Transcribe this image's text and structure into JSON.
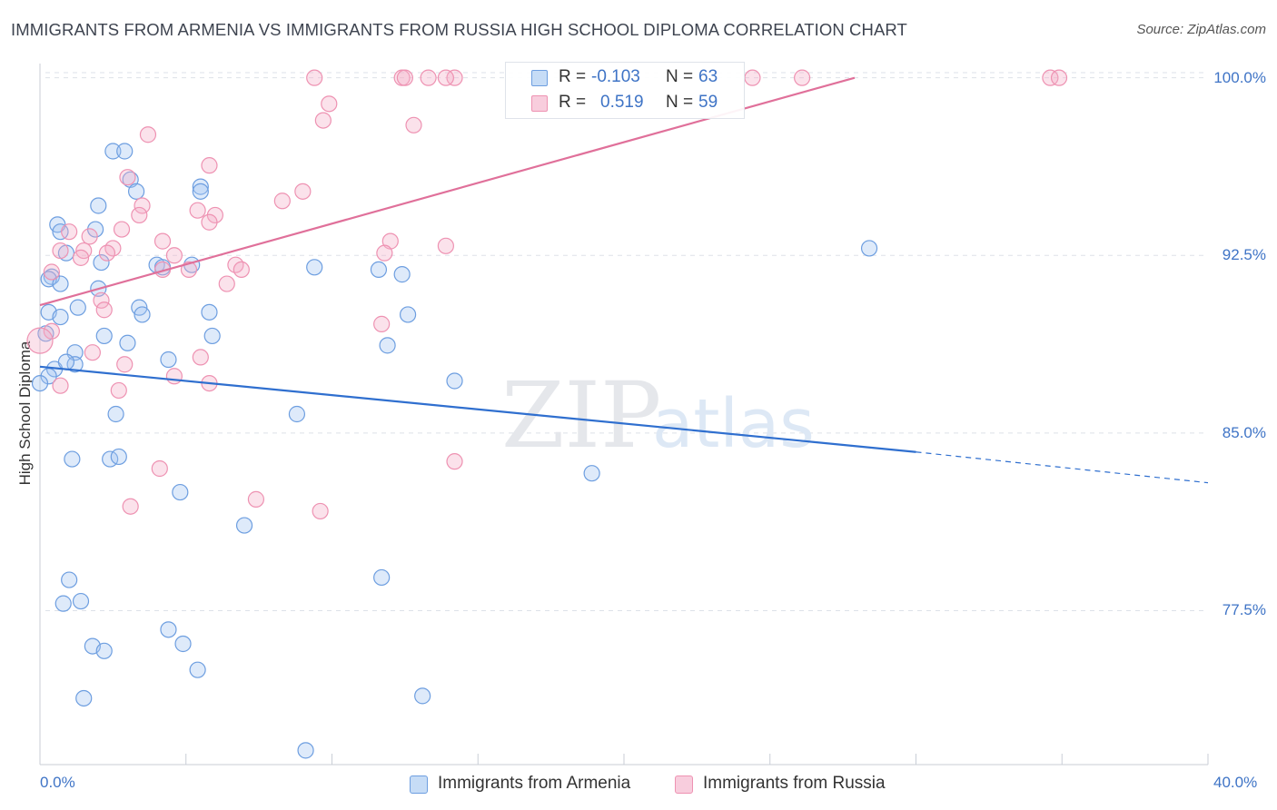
{
  "title": "IMMIGRANTS FROM ARMENIA VS IMMIGRANTS FROM RUSSIA HIGH SCHOOL DIPLOMA CORRELATION CHART",
  "source": "Source: ZipAtlas.com",
  "watermark": {
    "zip": "ZIP",
    "atlas": "atlas"
  },
  "colors": {
    "armenia_fill": "rgba(160,196,240,0.35)",
    "armenia_stroke": "#6d9ee0",
    "armenia_line": "#2f6fcf",
    "russia_fill": "rgba(244,172,198,0.35)",
    "russia_stroke": "#ee92b2",
    "russia_line": "#e0709a",
    "tick_label": "#3f74c6",
    "grid": "#dde1e8"
  },
  "legend_top": {
    "armenia": {
      "r_label": "R =",
      "r_value": "-0.103",
      "n_label": "N =",
      "n_value": "63"
    },
    "russia": {
      "r_label": "R =",
      "r_value": "0.519",
      "n_label": "N =",
      "n_value": "59"
    }
  },
  "chart_data": {
    "type": "scatter",
    "title": "IMMIGRANTS FROM ARMENIA VS IMMIGRANTS FROM RUSSIA HIGH SCHOOL DIPLOMA CORRELATION CHART",
    "xlabel": "",
    "ylabel": "High School Diploma",
    "xlim": [
      0,
      40
    ],
    "ylim": [
      71.0,
      100.6
    ],
    "x_tick_labels": {
      "min": "0.0%",
      "max": "40.0%"
    },
    "y_ticks": [
      {
        "value": 100.0,
        "label": "100.0%"
      },
      {
        "value": 92.5,
        "label": "92.5%"
      },
      {
        "value": 85.0,
        "label": "85.0%"
      },
      {
        "value": 77.5,
        "label": "77.5%"
      }
    ],
    "grid": true,
    "legend_position": "bottom-center",
    "series": [
      {
        "name": "Immigrants from Armenia",
        "r": -0.103,
        "n": 63,
        "trend": {
          "x0": 0.0,
          "y0": 87.8,
          "x1": 30.0,
          "y1": 84.2,
          "dashed_to_x": 40.0,
          "dashed_to_y": 82.9
        },
        "points": [
          [
            2.5,
            96.9
          ],
          [
            2.9,
            96.9
          ],
          [
            3.1,
            95.7
          ],
          [
            3.3,
            95.2
          ],
          [
            2.0,
            94.6
          ],
          [
            5.5,
            95.4
          ],
          [
            5.5,
            95.2
          ],
          [
            0.6,
            93.8
          ],
          [
            0.7,
            93.5
          ],
          [
            1.9,
            93.6
          ],
          [
            0.9,
            92.6
          ],
          [
            2.1,
            92.2
          ],
          [
            4.0,
            92.1
          ],
          [
            5.2,
            92.1
          ],
          [
            9.4,
            92.0
          ],
          [
            11.6,
            91.9
          ],
          [
            12.4,
            91.7
          ],
          [
            0.4,
            91.6
          ],
          [
            0.3,
            91.5
          ],
          [
            0.7,
            91.3
          ],
          [
            2.0,
            91.1
          ],
          [
            1.3,
            90.3
          ],
          [
            5.8,
            90.1
          ],
          [
            3.4,
            90.3
          ],
          [
            3.5,
            90.0
          ],
          [
            12.6,
            90.0
          ],
          [
            0.3,
            90.1
          ],
          [
            0.7,
            89.9
          ],
          [
            0.2,
            89.2
          ],
          [
            2.2,
            89.1
          ],
          [
            5.9,
            89.1
          ],
          [
            1.2,
            88.4
          ],
          [
            11.9,
            88.7
          ],
          [
            4.4,
            88.1
          ],
          [
            0.5,
            87.7
          ],
          [
            1.2,
            87.9
          ],
          [
            0.3,
            87.4
          ],
          [
            0.0,
            87.1
          ],
          [
            14.2,
            87.2
          ],
          [
            2.6,
            85.8
          ],
          [
            8.8,
            85.8
          ],
          [
            1.1,
            83.9
          ],
          [
            2.4,
            83.9
          ],
          [
            2.7,
            84.0
          ],
          [
            18.9,
            83.3
          ],
          [
            4.8,
            82.5
          ],
          [
            7.0,
            81.1
          ],
          [
            1.0,
            78.8
          ],
          [
            11.7,
            78.9
          ],
          [
            0.8,
            77.8
          ],
          [
            1.4,
            77.9
          ],
          [
            4.4,
            76.7
          ],
          [
            1.8,
            76.0
          ],
          [
            4.9,
            76.1
          ],
          [
            2.2,
            75.8
          ],
          [
            5.4,
            75.0
          ],
          [
            1.5,
            73.8
          ],
          [
            13.1,
            73.9
          ],
          [
            9.1,
            71.6
          ],
          [
            28.4,
            92.8
          ],
          [
            4.2,
            92.0
          ],
          [
            3.0,
            88.8
          ],
          [
            0.9,
            88.0
          ]
        ]
      },
      {
        "name": "Immigrants from Russia",
        "r": 0.519,
        "n": 59,
        "trend": {
          "x0": 0.0,
          "y0": 90.4,
          "x1": 27.9,
          "y1": 100.0
        },
        "points": [
          [
            9.4,
            100.0
          ],
          [
            12.4,
            100.0
          ],
          [
            12.5,
            100.0
          ],
          [
            13.3,
            100.0
          ],
          [
            14.2,
            100.0
          ],
          [
            26.1,
            100.0
          ],
          [
            34.6,
            100.0
          ],
          [
            34.9,
            100.0
          ],
          [
            9.9,
            98.9
          ],
          [
            9.7,
            98.2
          ],
          [
            12.8,
            98.0
          ],
          [
            3.7,
            97.6
          ],
          [
            5.8,
            96.3
          ],
          [
            3.0,
            95.8
          ],
          [
            9.0,
            95.2
          ],
          [
            8.3,
            94.8
          ],
          [
            3.5,
            94.6
          ],
          [
            5.4,
            94.4
          ],
          [
            6.0,
            94.2
          ],
          [
            3.4,
            94.2
          ],
          [
            5.8,
            93.9
          ],
          [
            1.0,
            93.5
          ],
          [
            1.7,
            93.3
          ],
          [
            2.5,
            92.8
          ],
          [
            4.2,
            93.1
          ],
          [
            12.0,
            93.1
          ],
          [
            13.9,
            92.9
          ],
          [
            0.7,
            92.7
          ],
          [
            1.5,
            92.7
          ],
          [
            2.3,
            92.6
          ],
          [
            1.4,
            92.4
          ],
          [
            11.8,
            92.6
          ],
          [
            6.7,
            92.1
          ],
          [
            4.2,
            91.9
          ],
          [
            5.1,
            91.9
          ],
          [
            6.9,
            91.9
          ],
          [
            6.4,
            91.3
          ],
          [
            0.4,
            91.8
          ],
          [
            2.1,
            90.6
          ],
          [
            2.2,
            90.2
          ],
          [
            11.7,
            89.6
          ],
          [
            0.4,
            89.3
          ],
          [
            0.0,
            88.9
          ],
          [
            1.8,
            88.4
          ],
          [
            5.5,
            88.2
          ],
          [
            2.9,
            87.9
          ],
          [
            4.6,
            87.4
          ],
          [
            5.8,
            87.1
          ],
          [
            0.7,
            87.0
          ],
          [
            2.7,
            86.8
          ],
          [
            4.1,
            83.5
          ],
          [
            14.2,
            83.8
          ],
          [
            7.4,
            82.2
          ],
          [
            3.1,
            81.9
          ],
          [
            9.6,
            81.7
          ],
          [
            13.9,
            100.0
          ],
          [
            24.4,
            100.0
          ],
          [
            4.6,
            92.5
          ],
          [
            2.8,
            93.6
          ]
        ]
      }
    ]
  }
}
